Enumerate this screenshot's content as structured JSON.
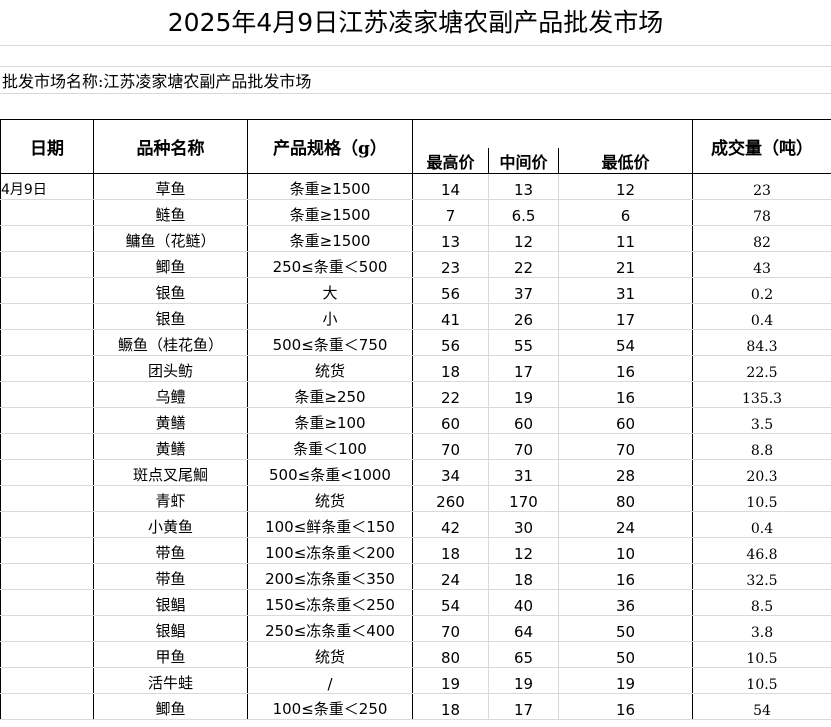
{
  "title": "2025年4月9日江苏凌家塘农副产品批发市场",
  "market_line": "批发市场名称:江苏凌家塘农副产品批发市场",
  "headers": {
    "date": "日期",
    "name": "品种名称",
    "spec": "产品规格（g）",
    "high": "最高价",
    "mid": "中间价",
    "low": "最低价",
    "volume": "成交量（吨）"
  },
  "rows": [
    {
      "date": "4月9日",
      "name": "草鱼",
      "spec": "条重≥1500",
      "high": "14",
      "mid": "13",
      "low": "12",
      "volume": "23"
    },
    {
      "date": "",
      "name": "鲢鱼",
      "spec": "条重≥1500",
      "high": "7",
      "mid": "6.5",
      "low": "6",
      "volume": "78"
    },
    {
      "date": "",
      "name": "鳙鱼（花鲢）",
      "spec": "条重≥1500",
      "high": "13",
      "mid": "12",
      "low": "11",
      "volume": "82"
    },
    {
      "date": "",
      "name": "鲫鱼",
      "spec": "250≤条重＜500",
      "high": "23",
      "mid": "22",
      "low": "21",
      "volume": "43"
    },
    {
      "date": "",
      "name": "银鱼",
      "spec": "大",
      "high": "56",
      "mid": "37",
      "low": "31",
      "volume": "0.2"
    },
    {
      "date": "",
      "name": "银鱼",
      "spec": "小",
      "high": "41",
      "mid": "26",
      "low": "17",
      "volume": "0.4"
    },
    {
      "date": "",
      "name": "鳜鱼（桂花鱼）",
      "spec": "500≤条重＜750",
      "high": "56",
      "mid": "55",
      "low": "54",
      "volume": "84.3"
    },
    {
      "date": "",
      "name": "团头鲂",
      "spec": "统货",
      "high": "18",
      "mid": "17",
      "low": "16",
      "volume": "22.5"
    },
    {
      "date": "",
      "name": "乌鳢",
      "spec": "条重≥250",
      "high": "22",
      "mid": "19",
      "low": "16",
      "volume": "135.3"
    },
    {
      "date": "",
      "name": "黄鳝",
      "spec": "条重≥100",
      "high": "60",
      "mid": "60",
      "low": "60",
      "volume": "3.5"
    },
    {
      "date": "",
      "name": "黄鳝",
      "spec": "条重＜100",
      "high": "70",
      "mid": "70",
      "low": "70",
      "volume": "8.8"
    },
    {
      "date": "",
      "name": "斑点叉尾鮰",
      "spec": "500≤条重<1000",
      "high": "34",
      "mid": "31",
      "low": "28",
      "volume": "20.3"
    },
    {
      "date": "",
      "name": "青虾",
      "spec": "统货",
      "high": "260",
      "mid": "170",
      "low": "80",
      "volume": "10.5"
    },
    {
      "date": "",
      "name": "小黄鱼",
      "spec": "100≤鲜条重＜150",
      "high": "42",
      "mid": "30",
      "low": "24",
      "volume": "0.4"
    },
    {
      "date": "",
      "name": "带鱼",
      "spec": "100≤冻条重＜200",
      "high": "18",
      "mid": "12",
      "low": "10",
      "volume": "46.8"
    },
    {
      "date": "",
      "name": "带鱼",
      "spec": "200≤冻条重＜350",
      "high": "24",
      "mid": "18",
      "low": "16",
      "volume": "32.5"
    },
    {
      "date": "",
      "name": "银鲳",
      "spec": "150≤冻条重＜250",
      "high": "54",
      "mid": "40",
      "low": "36",
      "volume": "8.5"
    },
    {
      "date": "",
      "name": "银鲳",
      "spec": "250≤冻条重＜400",
      "high": "70",
      "mid": "64",
      "low": "50",
      "volume": "3.8"
    },
    {
      "date": "",
      "name": "甲鱼",
      "spec": "统货",
      "high": "80",
      "mid": "65",
      "low": "50",
      "volume": "10.5"
    },
    {
      "date": "",
      "name": "活牛蛙",
      "spec": "/",
      "high": "19",
      "mid": "19",
      "low": "19",
      "volume": "10.5"
    },
    {
      "date": "",
      "name": "鲫鱼",
      "spec": "100≤条重＜250",
      "high": "18",
      "mid": "17",
      "low": "16",
      "volume": "54"
    }
  ]
}
